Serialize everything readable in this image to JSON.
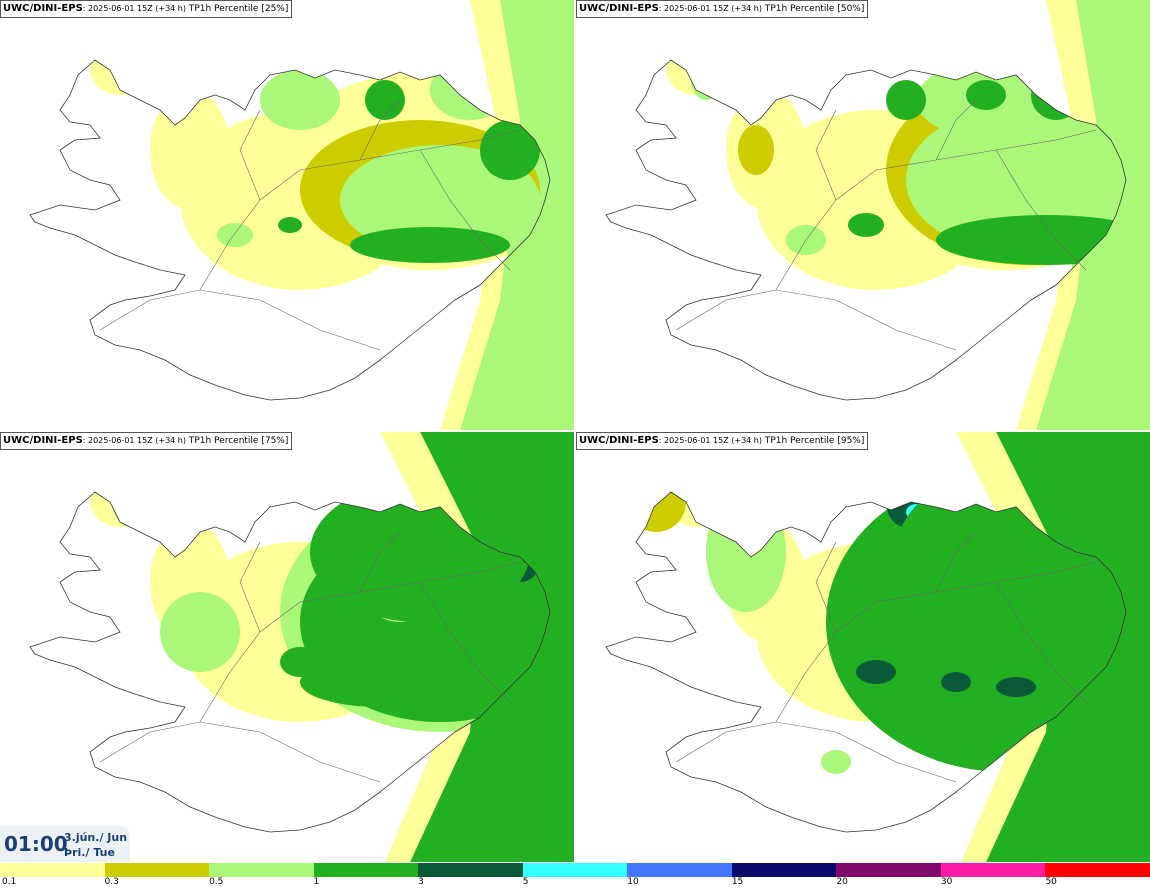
{
  "panels": [
    {
      "model": "UWC/DINI-EPS",
      "run": ": 2025-06-01 15Z (+34 h)",
      "field": " TP1h Percentile",
      "pct": "[25%]",
      "level": 1
    },
    {
      "model": "UWC/DINI-EPS",
      "run": ": 2025-06-01 15Z (+34 h)",
      "field": " TP1h Percentile",
      "pct": "[50%]",
      "level": 2
    },
    {
      "model": "UWC/DINI-EPS",
      "run": ": 2025-06-01 15Z (+34 h)",
      "field": " TP1h Percentile",
      "pct": "[75%]",
      "level": 3
    },
    {
      "model": "UWC/DINI-EPS",
      "run": ": 2025-06-01 15Z (+34 h)",
      "field": " TP1h Percentile",
      "pct": "[95%]",
      "level": 4
    }
  ],
  "valid_time": {
    "time": "01:00",
    "date_line1": "3.jún./ Jun",
    "date_line2": "Þri./ Tue"
  },
  "legend": {
    "labels": [
      "0.1",
      "0.3",
      "0.5",
      "1",
      "3",
      "5",
      "10",
      "15",
      "20",
      "30",
      "50"
    ],
    "colors": [
      "#ffff99",
      "#cccc00",
      "#aaf77a",
      "#22b022",
      "#0a5a3a",
      "#33ffff",
      "#4477ff",
      "#0a0a6a",
      "#800a6a",
      "#ff1aa8",
      "#ff0000"
    ]
  }
}
